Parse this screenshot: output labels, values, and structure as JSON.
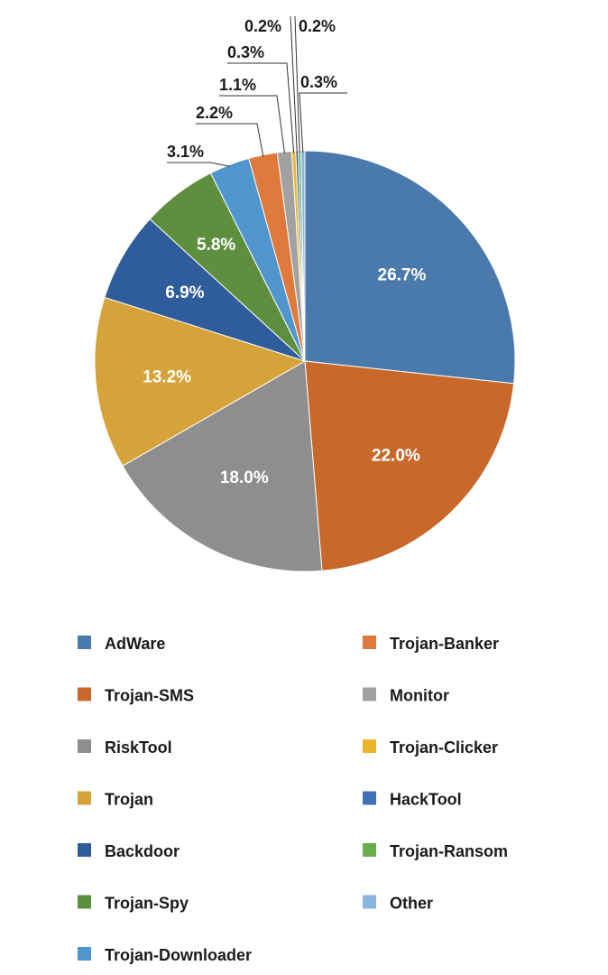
{
  "chart_data": {
    "type": "pie",
    "title": "",
    "start": "12 o'clock, clockwise",
    "legend_position": "bottom",
    "series": [
      {
        "name": "AdWare",
        "value": 26.7,
        "label": "26.7%",
        "color": "#4a7aab"
      },
      {
        "name": "Trojan-SMS",
        "value": 22.0,
        "label": "22.0%",
        "color": "#c8682b"
      },
      {
        "name": "RiskTool",
        "value": 18.0,
        "label": "18.0%",
        "color": "#8e8e8e"
      },
      {
        "name": "Trojan",
        "value": 13.2,
        "label": "13.2%",
        "color": "#d6a33a"
      },
      {
        "name": "Backdoor",
        "value": 6.9,
        "label": "6.9%",
        "color": "#2f5c9a"
      },
      {
        "name": "Trojan-Spy",
        "value": 5.8,
        "label": "5.8%",
        "color": "#5e8f3e"
      },
      {
        "name": "Trojan-Downloader",
        "value": 3.1,
        "label": "3.1%",
        "color": "#4f96cf"
      },
      {
        "name": "Trojan-Banker",
        "value": 2.2,
        "label": "2.2%",
        "color": "#e0793c"
      },
      {
        "name": "Monitor",
        "value": 1.1,
        "label": "1.1%",
        "color": "#a1a1a1"
      },
      {
        "name": "Trojan-Clicker",
        "value": 0.3,
        "label": "0.3%",
        "color": "#eab52b"
      },
      {
        "name": "HackTool",
        "value": 0.2,
        "label": "0.2%",
        "color": "#3f6fb4"
      },
      {
        "name": "Trojan-Ransom",
        "value": 0.2,
        "label": "0.2%",
        "color": "#6aad4f"
      },
      {
        "name": "Other",
        "value": 0.3,
        "label": "0.3%",
        "color": "#8ab5e0"
      }
    ]
  }
}
